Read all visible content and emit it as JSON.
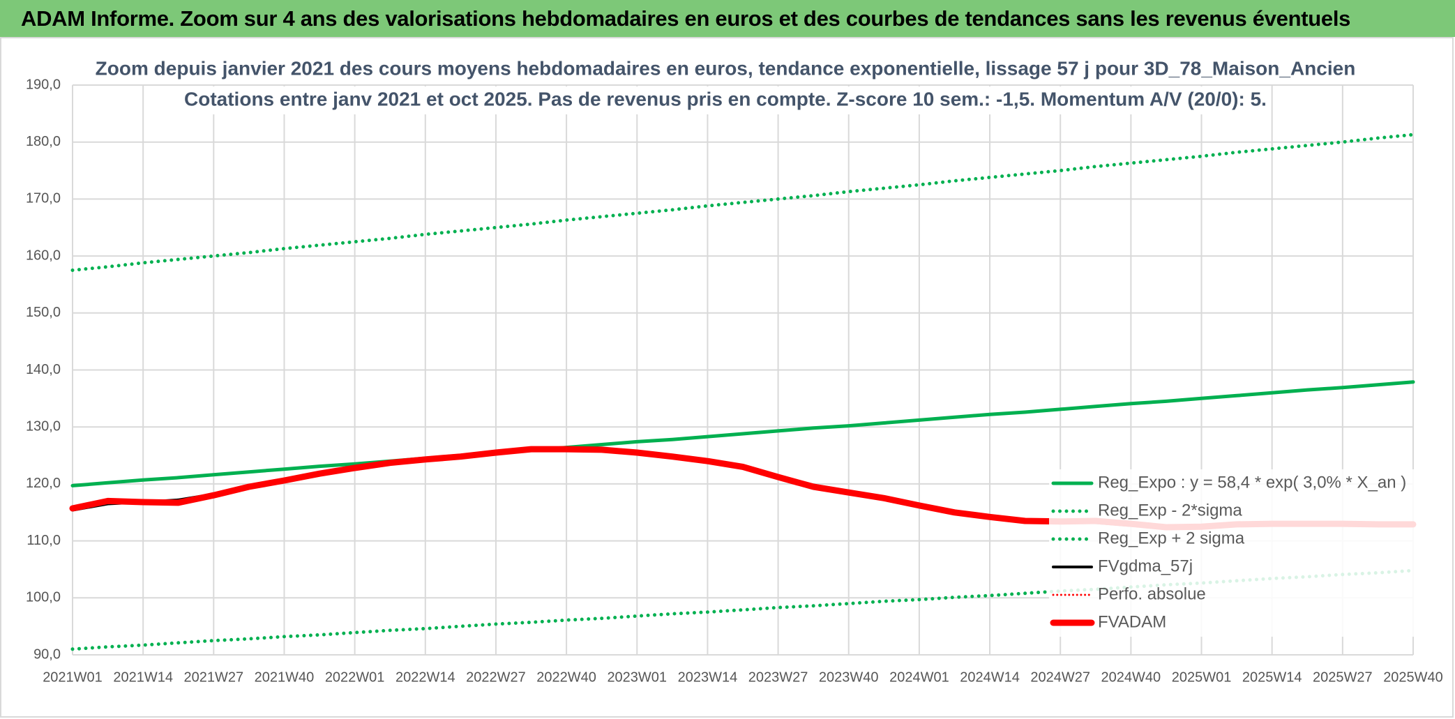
{
  "header": {
    "title": "ADAM Informe. Zoom sur 4 ans des valorisations hebdomadaires en euros et des courbes de tendances sans les revenus éventuels"
  },
  "chart_data": {
    "type": "line",
    "subtitle": [
      "Zoom depuis janvier 2021 des cours moyens hebdomadaires en euros, tendance exponentielle, lissage 57 j pour 3D_78_Maison_Ancien",
      "Cotations entre janv 2021 et oct 2025. Pas de revenus pris en compte. Z-score 10 sem.: -1,5. Momentum A/V (20/0): 5."
    ],
    "categories": [
      "2021W01",
      null,
      "2021W14",
      null,
      "2021W27",
      null,
      "2021W40",
      null,
      "2022W01",
      null,
      "2022W14",
      null,
      "2022W27",
      null,
      "2022W40",
      null,
      "2023W01",
      null,
      "2023W14",
      null,
      "2023W27",
      null,
      "2023W40",
      null,
      "2024W01",
      null,
      "2024W14",
      null,
      "2024W27",
      null,
      "2024W40",
      null,
      "2025W01",
      null,
      "2025W14",
      null,
      "2025W27",
      null,
      "2025W40"
    ],
    "ylim": [
      90,
      190
    ],
    "yticks": [
      {
        "value": 90,
        "label": "90,0"
      },
      {
        "value": 100,
        "label": "100,0"
      },
      {
        "value": 110,
        "label": "110,0"
      },
      {
        "value": 120,
        "label": "120,0"
      },
      {
        "value": 130,
        "label": "130,0"
      },
      {
        "value": 140,
        "label": "140,0"
      },
      {
        "value": 150,
        "label": "150,0"
      },
      {
        "value": 160,
        "label": "160,0"
      },
      {
        "value": 170,
        "label": "170,0"
      },
      {
        "value": 180,
        "label": "180,0"
      },
      {
        "value": 190,
        "label": "190,0"
      }
    ],
    "grid": true,
    "legend": "lower right",
    "series": [
      {
        "name": "Reg_Expo : y = 58,4 * exp( 3,0% *  X_an )",
        "color": "#00b050",
        "line_style": "solid",
        "values": [
          119.7,
          120.2,
          120.7,
          121.1,
          121.6,
          122.1,
          122.6,
          123.1,
          123.5,
          124.0,
          124.5,
          125.0,
          125.4,
          125.9,
          126.4,
          126.9,
          127.4,
          127.8,
          128.3,
          128.8,
          129.3,
          129.8,
          130.2,
          130.7,
          131.2,
          131.7,
          132.2,
          132.6,
          133.1,
          133.6,
          134.1,
          134.5,
          135.0,
          135.5,
          136.0,
          136.5,
          136.9,
          137.4,
          137.9
        ]
      },
      {
        "name": "Reg_Exp - 2*sigma",
        "color": "#00b050",
        "line_style": "dotted",
        "values": [
          91.0,
          91.4,
          91.7,
          92.1,
          92.5,
          92.8,
          93.2,
          93.5,
          93.9,
          94.3,
          94.6,
          95.0,
          95.4,
          95.7,
          96.1,
          96.4,
          96.8,
          97.2,
          97.5,
          97.9,
          98.3,
          98.6,
          99.0,
          99.4,
          99.7,
          100.1,
          100.4,
          100.8,
          101.2,
          101.5,
          101.9,
          102.3,
          102.6,
          103.0,
          103.4,
          103.7,
          104.1,
          104.4,
          104.8
        ]
      },
      {
        "name": "Reg_Exp + 2 sigma",
        "color": "#00b050",
        "line_style": "dotted",
        "values": [
          157.5,
          158.1,
          158.8,
          159.4,
          160.0,
          160.6,
          161.3,
          161.9,
          162.5,
          163.1,
          163.8,
          164.4,
          165.0,
          165.6,
          166.3,
          166.9,
          167.5,
          168.1,
          168.8,
          169.4,
          170.0,
          170.6,
          171.3,
          171.9,
          172.5,
          173.2,
          173.8,
          174.4,
          175.0,
          175.7,
          176.3,
          176.9,
          177.5,
          178.2,
          178.8,
          179.4,
          180.0,
          180.7,
          181.3
        ]
      },
      {
        "name": "FVgdma_57j",
        "color": "#000000",
        "line_style": "solid",
        "values": [
          115.4,
          116.5,
          116.8,
          117.2,
          118.2,
          119.5,
          120.6,
          121.7,
          122.7,
          123.6,
          124.3,
          124.8,
          125.4,
          126.0,
          126.1,
          125.9,
          125.4,
          124.7,
          123.8,
          122.8,
          121.3,
          119.8,
          118.6,
          117.5,
          116.3,
          115.2,
          114.4,
          113.7,
          113.3,
          113.2,
          112.7,
          112.3,
          112.4,
          112.8,
          113.0,
          113.0,
          113.0,
          112.9,
          112.9
        ]
      },
      {
        "name": "Perfo. absolue",
        "color": "#ff0000",
        "line_style": "dotted",
        "values": [
          115.7,
          117.0,
          116.8,
          116.7,
          118.0,
          119.5,
          120.6,
          121.8,
          122.8,
          123.7,
          124.3,
          124.8,
          125.5,
          126.1,
          126.1,
          126.0,
          125.5,
          124.8,
          124.0,
          123.0,
          121.2,
          119.5,
          118.5,
          117.5,
          116.2,
          115.0,
          114.2,
          113.5,
          113.4,
          113.5,
          113.0,
          112.4,
          112.5,
          112.9,
          113.0,
          113.0,
          113.0,
          112.9,
          112.9
        ]
      },
      {
        "name": "FVADAM",
        "color": "#ff0000",
        "line_style": "solid",
        "values": [
          115.7,
          117.0,
          116.8,
          116.7,
          118.0,
          119.5,
          120.6,
          121.8,
          122.8,
          123.7,
          124.3,
          124.8,
          125.5,
          126.1,
          126.1,
          126.0,
          125.5,
          124.8,
          124.0,
          123.0,
          121.2,
          119.5,
          118.5,
          117.5,
          116.2,
          115.0,
          114.2,
          113.5,
          113.4,
          113.5,
          113.0,
          112.4,
          112.5,
          112.9,
          113.0,
          113.0,
          113.0,
          112.9,
          112.9
        ]
      }
    ]
  }
}
